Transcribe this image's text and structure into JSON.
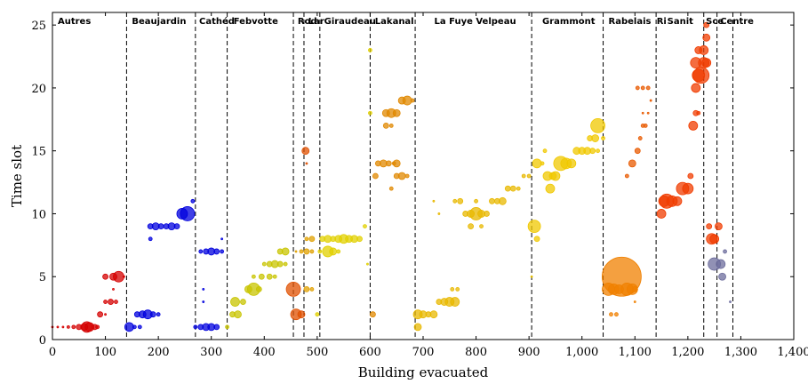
{
  "chart_data": {
    "type": "scatter",
    "xlabel": "Building evacuated",
    "ylabel": "Time slot",
    "xlim": [
      0,
      1400
    ],
    "ylim": [
      0,
      26
    ],
    "x_ticks": [
      "0",
      "100",
      "200",
      "300",
      "400",
      "500",
      "600",
      "700",
      "800",
      "900",
      "1,000",
      "1,100",
      "1,200",
      "1,300",
      "1,400"
    ],
    "x_tick_values": [
      0,
      100,
      200,
      300,
      400,
      500,
      600,
      700,
      800,
      900,
      1000,
      1100,
      1200,
      1300,
      1400
    ],
    "y_ticks": [
      "0",
      "5",
      "10",
      "15",
      "20",
      "25"
    ],
    "y_tick_values": [
      0,
      5,
      10,
      15,
      20,
      25
    ],
    "boundaries": [
      140,
      270,
      330,
      455,
      475,
      505,
      600,
      685,
      905,
      1040,
      1140,
      1230,
      1255,
      1285
    ],
    "regions": [
      {
        "label": "Autres",
        "x": 5
      },
      {
        "label": "Beaujardin",
        "x": 145
      },
      {
        "label": "Cathéd",
        "x": 272
      },
      {
        "label": "Febvotte",
        "x": 337
      },
      {
        "label": "Rod",
        "x": 458
      },
      {
        "label": "Lar",
        "x": 478
      },
      {
        "label": "Giraudeau",
        "x": 508
      },
      {
        "label": "Lakanal",
        "x": 604
      },
      {
        "label": "La Fuye Velpeau",
        "x": 716
      },
      {
        "label": "Grammont",
        "x": 920
      },
      {
        "label": "Rabelais",
        "x": 1045
      },
      {
        "label": "Ri",
        "x": 1136
      },
      {
        "label": "Sanit",
        "x": 1156
      },
      {
        "label": "Sce",
        "x": 1229
      },
      {
        "label": "Centre",
        "x": 1256
      }
    ],
    "series": [
      {
        "color": "#d40000",
        "points": [
          [
            0,
            1,
            1
          ],
          [
            10,
            1,
            1
          ],
          [
            20,
            1,
            1
          ],
          [
            30,
            1,
            1.5
          ],
          [
            40,
            1,
            2
          ],
          [
            50,
            1,
            3
          ],
          [
            60,
            1,
            4
          ],
          [
            65,
            1,
            6
          ],
          [
            70,
            1,
            5
          ],
          [
            80,
            1,
            3
          ],
          [
            85,
            1,
            2
          ],
          [
            90,
            2,
            3
          ],
          [
            100,
            2,
            1
          ],
          [
            100,
            3,
            2
          ],
          [
            110,
            3,
            3
          ],
          [
            120,
            3,
            2
          ],
          [
            115,
            4,
            1
          ],
          [
            100,
            5,
            3
          ],
          [
            115,
            5,
            4
          ],
          [
            125,
            5,
            6
          ],
          [
            135,
            5,
            1
          ]
        ]
      },
      {
        "color": "#0000dd",
        "points": [
          [
            145,
            1,
            5
          ],
          [
            155,
            1,
            2
          ],
          [
            165,
            1,
            2
          ],
          [
            160,
            2,
            3
          ],
          [
            170,
            2,
            4
          ],
          [
            180,
            2,
            5
          ],
          [
            190,
            2,
            3
          ],
          [
            200,
            2,
            2
          ],
          [
            185,
            8,
            2
          ],
          [
            185,
            9,
            3
          ],
          [
            195,
            9,
            4
          ],
          [
            205,
            9,
            3
          ],
          [
            215,
            9,
            3
          ],
          [
            225,
            9,
            4
          ],
          [
            235,
            9,
            3
          ],
          [
            245,
            10,
            6
          ],
          [
            255,
            10,
            8
          ],
          [
            265,
            11,
            2
          ],
          [
            270,
            1,
            2
          ],
          [
            280,
            1,
            3
          ],
          [
            290,
            1,
            4
          ],
          [
            300,
            1,
            4
          ],
          [
            310,
            1,
            3
          ],
          [
            285,
            3,
            1
          ],
          [
            285,
            4,
            1
          ],
          [
            280,
            7,
            2
          ],
          [
            290,
            7,
            3
          ],
          [
            300,
            7,
            4
          ],
          [
            310,
            7,
            3
          ],
          [
            320,
            7,
            2
          ],
          [
            320,
            8,
            1
          ]
        ]
      },
      {
        "color": "#6c6c9c",
        "points": [
          [
            1250,
            6,
            7
          ],
          [
            1262,
            6,
            5
          ],
          [
            1270,
            7,
            2
          ],
          [
            1265,
            5,
            4
          ],
          [
            1280,
            3,
            1
          ]
        ]
      },
      {
        "color": "#c8c400",
        "points": [
          [
            330,
            1,
            2
          ],
          [
            340,
            2,
            3
          ],
          [
            350,
            2,
            4
          ],
          [
            345,
            3,
            5
          ],
          [
            360,
            3,
            3
          ],
          [
            370,
            4,
            4
          ],
          [
            380,
            4,
            7
          ],
          [
            390,
            4,
            3
          ],
          [
            380,
            5,
            2
          ],
          [
            395,
            5,
            3
          ],
          [
            400,
            6,
            2
          ],
          [
            410,
            6,
            3
          ],
          [
            420,
            6,
            4
          ],
          [
            430,
            6,
            3
          ],
          [
            440,
            6,
            2
          ],
          [
            410,
            5,
            3
          ],
          [
            420,
            5,
            2
          ],
          [
            430,
            7,
            3
          ],
          [
            440,
            7,
            4
          ]
        ]
      },
      {
        "color": "#e1d000",
        "points": [
          [
            500,
            2,
            2
          ],
          [
            505,
            7,
            2
          ],
          [
            510,
            8,
            3
          ],
          [
            520,
            8,
            4
          ],
          [
            530,
            8,
            3
          ],
          [
            540,
            8,
            4
          ],
          [
            550,
            8,
            5
          ],
          [
            560,
            8,
            4
          ],
          [
            570,
            8,
            4
          ],
          [
            580,
            8,
            3
          ],
          [
            590,
            9,
            2
          ],
          [
            520,
            7,
            6
          ],
          [
            530,
            7,
            4
          ],
          [
            540,
            7,
            2
          ],
          [
            600,
            18,
            2
          ],
          [
            600,
            23,
            2
          ],
          [
            595,
            6,
            1
          ]
        ]
      },
      {
        "color": "#e0a000",
        "points": [
          [
            460,
            7,
            1
          ],
          [
            470,
            7,
            2
          ],
          [
            480,
            7,
            3
          ],
          [
            490,
            7,
            2
          ],
          [
            480,
            8,
            2
          ],
          [
            490,
            8,
            3
          ],
          [
            480,
            4,
            3
          ],
          [
            490,
            4,
            2
          ]
        ]
      },
      {
        "color": "#e05000",
        "points": [
          [
            455,
            4,
            8
          ],
          [
            460,
            2,
            6
          ],
          [
            470,
            2,
            4
          ],
          [
            478,
            15,
            4
          ],
          [
            480,
            14,
            1
          ]
        ]
      },
      {
        "color": "#e08800",
        "points": [
          [
            605,
            2,
            3
          ],
          [
            610,
            13,
            3
          ],
          [
            615,
            14,
            3
          ],
          [
            625,
            14,
            4
          ],
          [
            635,
            14,
            3
          ],
          [
            645,
            14,
            2
          ],
          [
            650,
            14,
            4
          ],
          [
            630,
            18,
            4
          ],
          [
            640,
            18,
            5
          ],
          [
            650,
            18,
            4
          ],
          [
            630,
            17,
            3
          ],
          [
            640,
            17,
            2
          ],
          [
            660,
            19,
            4
          ],
          [
            670,
            19,
            5
          ],
          [
            680,
            19,
            2
          ],
          [
            640,
            12,
            2
          ],
          [
            650,
            13,
            3
          ],
          [
            660,
            13,
            4
          ],
          [
            670,
            13,
            2
          ]
        ]
      },
      {
        "color": "#e8b800",
        "points": [
          [
            690,
            1,
            4
          ],
          [
            690,
            2,
            5
          ],
          [
            700,
            2,
            4
          ],
          [
            710,
            2,
            3
          ],
          [
            720,
            2,
            4
          ],
          [
            730,
            3,
            3
          ],
          [
            740,
            3,
            4
          ],
          [
            750,
            3,
            5
          ],
          [
            760,
            3,
            5
          ],
          [
            755,
            4,
            2
          ],
          [
            765,
            4,
            2
          ],
          [
            760,
            11,
            2
          ],
          [
            770,
            11,
            3
          ],
          [
            780,
            10,
            3
          ],
          [
            790,
            10,
            4
          ],
          [
            800,
            10,
            7
          ],
          [
            810,
            10,
            4
          ],
          [
            820,
            10,
            3
          ],
          [
            830,
            11,
            3
          ],
          [
            840,
            11,
            3
          ],
          [
            850,
            11,
            4
          ],
          [
            860,
            12,
            3
          ],
          [
            870,
            12,
            3
          ],
          [
            880,
            12,
            2
          ],
          [
            890,
            13,
            2
          ],
          [
            900,
            13,
            2
          ],
          [
            810,
            9,
            2
          ],
          [
            790,
            9,
            3
          ],
          [
            800,
            11,
            2
          ],
          [
            720,
            11,
            1
          ],
          [
            730,
            10,
            1
          ]
        ]
      },
      {
        "color": "#f0c800",
        "points": [
          [
            905,
            5,
            1
          ],
          [
            910,
            9,
            7
          ],
          [
            915,
            8,
            3
          ],
          [
            915,
            14,
            5
          ],
          [
            925,
            14,
            2
          ],
          [
            930,
            15,
            2
          ],
          [
            935,
            13,
            5
          ],
          [
            940,
            12,
            5
          ],
          [
            945,
            13,
            4
          ],
          [
            950,
            13,
            5
          ],
          [
            960,
            14,
            8
          ],
          [
            970,
            14,
            6
          ],
          [
            980,
            14,
            5
          ],
          [
            990,
            15,
            4
          ],
          [
            1000,
            15,
            4
          ],
          [
            1010,
            15,
            4
          ],
          [
            1020,
            15,
            3
          ],
          [
            1030,
            15,
            2
          ],
          [
            1015,
            16,
            3
          ],
          [
            1025,
            16,
            4
          ],
          [
            1030,
            17,
            8
          ],
          [
            1040,
            16,
            2
          ]
        ]
      },
      {
        "color": "#f08000",
        "points": [
          [
            1050,
            4,
            7
          ],
          [
            1060,
            4,
            6
          ],
          [
            1070,
            4,
            5
          ],
          [
            1075,
            5,
            22
          ],
          [
            1085,
            4,
            7
          ],
          [
            1095,
            4,
            6
          ],
          [
            1100,
            4,
            3
          ],
          [
            1055,
            2,
            2
          ],
          [
            1065,
            2,
            2
          ],
          [
            1100,
            3,
            1
          ]
        ]
      },
      {
        "color": "#e85a00",
        "points": [
          [
            1085,
            13,
            2
          ],
          [
            1095,
            14,
            4
          ],
          [
            1105,
            15,
            3
          ],
          [
            1110,
            16,
            2
          ],
          [
            1115,
            17,
            2
          ],
          [
            1120,
            17,
            2
          ],
          [
            1125,
            18,
            1
          ],
          [
            1105,
            20,
            2
          ],
          [
            1115,
            20,
            2
          ],
          [
            1125,
            20,
            2
          ],
          [
            1130,
            19,
            1
          ],
          [
            1115,
            18,
            1
          ]
        ]
      },
      {
        "color": "#f03c00",
        "points": [
          [
            1150,
            10,
            5
          ],
          [
            1155,
            11,
            6
          ],
          [
            1160,
            11,
            8
          ],
          [
            1170,
            11,
            6
          ],
          [
            1180,
            11,
            5
          ],
          [
            1190,
            12,
            7
          ],
          [
            1200,
            12,
            6
          ],
          [
            1205,
            13,
            3
          ],
          [
            1210,
            17,
            5
          ],
          [
            1215,
            18,
            3
          ],
          [
            1220,
            18,
            2
          ],
          [
            1215,
            20,
            5
          ],
          [
            1220,
            21,
            7
          ],
          [
            1225,
            21,
            9
          ],
          [
            1230,
            22,
            6
          ],
          [
            1235,
            22,
            5
          ],
          [
            1215,
            22,
            6
          ],
          [
            1220,
            23,
            4
          ],
          [
            1230,
            23,
            5
          ],
          [
            1235,
            24,
            4
          ],
          [
            1235,
            25,
            3
          ],
          [
            1240,
            9,
            3
          ],
          [
            1245,
            8,
            6
          ],
          [
            1250,
            8,
            5
          ],
          [
            1258,
            9,
            4
          ]
        ]
      }
    ]
  }
}
